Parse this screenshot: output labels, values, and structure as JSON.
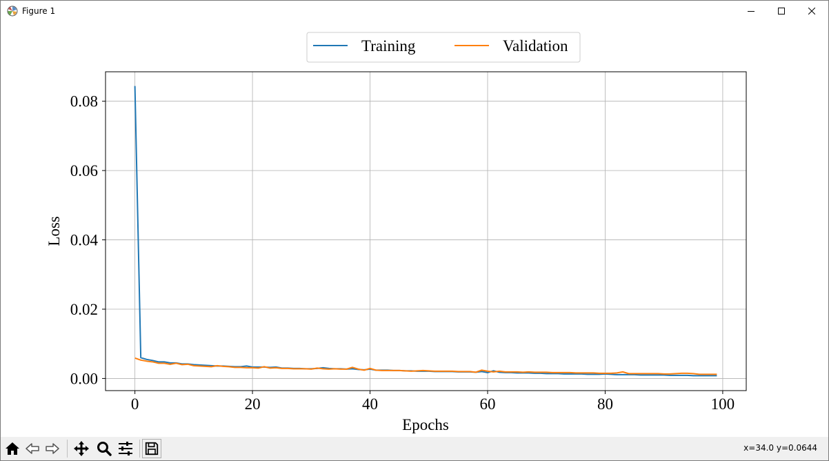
{
  "window": {
    "title": "Figure 1",
    "buttons": [
      "minimize",
      "maximize",
      "close"
    ]
  },
  "toolbar": {
    "buttons": [
      {
        "name": "home",
        "icon": "home-icon"
      },
      {
        "name": "back",
        "icon": "arrow-left-icon"
      },
      {
        "name": "forward",
        "icon": "arrow-right-icon"
      },
      {
        "name": "pan",
        "icon": "move-icon"
      },
      {
        "name": "zoom",
        "icon": "magnifier-icon"
      },
      {
        "name": "configure-subplots",
        "icon": "sliders-icon"
      },
      {
        "name": "save",
        "icon": "floppy-icon"
      }
    ],
    "coords": "x=34.0 y=0.0644"
  },
  "chart_data": {
    "type": "line",
    "title": "",
    "xlabel": "Epochs",
    "ylabel": "Loss",
    "xlim": [
      -5,
      104
    ],
    "ylim": [
      -0.0035,
      0.0885
    ],
    "xticks": [
      0,
      20,
      40,
      60,
      80,
      100
    ],
    "xtick_labels": [
      "0",
      "20",
      "40",
      "60",
      "80",
      "100"
    ],
    "yticks": [
      0.0,
      0.02,
      0.04,
      0.06,
      0.08
    ],
    "ytick_labels": [
      "0.00",
      "0.02",
      "0.04",
      "0.06",
      "0.08"
    ],
    "grid": true,
    "legend_position": "top-center",
    "series": [
      {
        "name": "Training",
        "color": "#1f77b4",
        "x": [
          0,
          1,
          2,
          3,
          4,
          5,
          6,
          7,
          8,
          9,
          10,
          11,
          12,
          13,
          14,
          15,
          16,
          17,
          18,
          19,
          20,
          21,
          22,
          23,
          24,
          25,
          26,
          27,
          28,
          29,
          30,
          31,
          32,
          33,
          34,
          35,
          36,
          37,
          38,
          39,
          40,
          41,
          42,
          43,
          44,
          45,
          46,
          47,
          48,
          49,
          50,
          51,
          52,
          53,
          54,
          55,
          56,
          57,
          58,
          59,
          60,
          61,
          62,
          63,
          64,
          65,
          66,
          67,
          68,
          69,
          70,
          71,
          72,
          73,
          74,
          75,
          76,
          77,
          78,
          79,
          80,
          81,
          82,
          83,
          84,
          85,
          86,
          87,
          88,
          89,
          90,
          91,
          92,
          93,
          94,
          95,
          96,
          97,
          98,
          99
        ],
        "values": [
          0.0844,
          0.006,
          0.0055,
          0.0052,
          0.0048,
          0.0048,
          0.0045,
          0.0045,
          0.0042,
          0.0042,
          0.004,
          0.0039,
          0.0038,
          0.0037,
          0.0036,
          0.0036,
          0.0035,
          0.0034,
          0.0034,
          0.0036,
          0.0033,
          0.0033,
          0.0033,
          0.0032,
          0.0033,
          0.003,
          0.003,
          0.0029,
          0.0029,
          0.0028,
          0.0028,
          0.0029,
          0.0031,
          0.0029,
          0.0028,
          0.0028,
          0.0027,
          0.0028,
          0.0026,
          0.0025,
          0.0027,
          0.0024,
          0.0024,
          0.0024,
          0.0023,
          0.0023,
          0.0022,
          0.0022,
          0.0021,
          0.0021,
          0.0021,
          0.002,
          0.002,
          0.002,
          0.002,
          0.0019,
          0.0019,
          0.0019,
          0.0018,
          0.002,
          0.0017,
          0.0022,
          0.0018,
          0.0017,
          0.0017,
          0.0016,
          0.0016,
          0.0016,
          0.0015,
          0.0015,
          0.0014,
          0.0014,
          0.0014,
          0.0013,
          0.0013,
          0.0013,
          0.0013,
          0.0012,
          0.0012,
          0.0012,
          0.0013,
          0.0012,
          0.0011,
          0.0011,
          0.0011,
          0.0011,
          0.001,
          0.001,
          0.001,
          0.001,
          0.001,
          0.0009,
          0.0009,
          0.0009,
          0.0009,
          0.0008,
          0.0008,
          0.0008,
          0.0008,
          0.0008
        ]
      },
      {
        "name": "Validation",
        "color": "#ff7f0e",
        "x": [
          0,
          1,
          2,
          3,
          4,
          5,
          6,
          7,
          8,
          9,
          10,
          11,
          12,
          13,
          14,
          15,
          16,
          17,
          18,
          19,
          20,
          21,
          22,
          23,
          24,
          25,
          26,
          27,
          28,
          29,
          30,
          31,
          32,
          33,
          34,
          35,
          36,
          37,
          38,
          39,
          40,
          41,
          42,
          43,
          44,
          45,
          46,
          47,
          48,
          49,
          50,
          51,
          52,
          53,
          54,
          55,
          56,
          57,
          58,
          59,
          60,
          61,
          62,
          63,
          64,
          65,
          66,
          67,
          68,
          69,
          70,
          71,
          72,
          73,
          74,
          75,
          76,
          77,
          78,
          79,
          80,
          81,
          82,
          83,
          84,
          85,
          86,
          87,
          88,
          89,
          90,
          91,
          92,
          93,
          94,
          95,
          96,
          97,
          98,
          99
        ],
        "values": [
          0.0059,
          0.0053,
          0.005,
          0.0048,
          0.0044,
          0.0044,
          0.0041,
          0.0044,
          0.004,
          0.0041,
          0.0037,
          0.0036,
          0.0035,
          0.0034,
          0.0037,
          0.0035,
          0.0034,
          0.0032,
          0.0032,
          0.0031,
          0.0031,
          0.003,
          0.0034,
          0.003,
          0.0031,
          0.0029,
          0.0029,
          0.0028,
          0.0028,
          0.0028,
          0.0027,
          0.003,
          0.0028,
          0.0027,
          0.0028,
          0.0027,
          0.0027,
          0.0032,
          0.0027,
          0.0024,
          0.0029,
          0.0024,
          0.0023,
          0.0023,
          0.0023,
          0.0023,
          0.0022,
          0.0021,
          0.0022,
          0.0023,
          0.0022,
          0.0021,
          0.0021,
          0.0021,
          0.0021,
          0.002,
          0.002,
          0.002,
          0.0018,
          0.0024,
          0.0021,
          0.0019,
          0.0021,
          0.0019,
          0.0019,
          0.0019,
          0.0018,
          0.0019,
          0.0018,
          0.0018,
          0.0018,
          0.0017,
          0.0017,
          0.0017,
          0.0017,
          0.0016,
          0.0016,
          0.0016,
          0.0016,
          0.0015,
          0.0015,
          0.0015,
          0.0016,
          0.0019,
          0.0014,
          0.0014,
          0.0014,
          0.0014,
          0.0014,
          0.0014,
          0.0013,
          0.0013,
          0.0014,
          0.0015,
          0.0015,
          0.0014,
          0.0012,
          0.0012,
          0.0012,
          0.0012
        ]
      }
    ]
  }
}
